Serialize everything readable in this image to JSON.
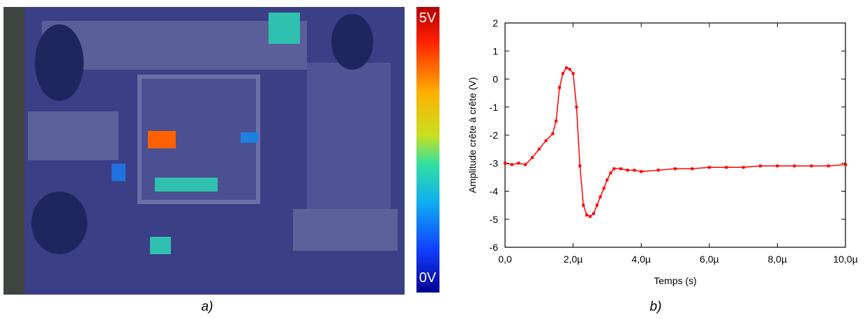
{
  "panel_a": {
    "colorbar_max": "5V",
    "colorbar_min": "0V",
    "caption": "a)"
  },
  "chart_data": {
    "type": "line",
    "caption": "b)",
    "x_label": "Temps (s)",
    "y_label": "Amplitude crête à crête (V)",
    "xlim": [
      0,
      1e-05
    ],
    "ylim": [
      -6,
      2
    ],
    "xticks": [
      {
        "value": 0,
        "label": "0,0"
      },
      {
        "value": 2e-06,
        "label": "2,0µ"
      },
      {
        "value": 4e-06,
        "label": "4,0µ"
      },
      {
        "value": 6e-06,
        "label": "6,0µ"
      },
      {
        "value": 8e-06,
        "label": "8,0µ"
      },
      {
        "value": 1e-05,
        "label": "10,0µ"
      }
    ],
    "yticks": [
      -6,
      -5,
      -4,
      -3,
      -2,
      -1,
      0,
      1,
      2
    ],
    "series": [
      {
        "color": "#ff0000",
        "x": [
          0,
          2e-07,
          4e-07,
          6e-07,
          8e-07,
          1e-06,
          1.2e-06,
          1.4e-06,
          1.5e-06,
          1.6e-06,
          1.7e-06,
          1.8e-06,
          1.9e-06,
          2e-06,
          2.1e-06,
          2.2e-06,
          2.3e-06,
          2.4e-06,
          2.5e-06,
          2.6e-06,
          2.7e-06,
          2.8e-06,
          2.9e-06,
          3e-06,
          3.1e-06,
          3.2e-06,
          3.4e-06,
          3.6e-06,
          3.8e-06,
          4e-06,
          4.5e-06,
          5e-06,
          5.5e-06,
          6e-06,
          6.5e-06,
          7e-06,
          7.5e-06,
          8e-06,
          8.5e-06,
          9e-06,
          9.5e-06,
          1e-05
        ],
        "values": [
          -3.0,
          -3.05,
          -3.0,
          -3.05,
          -2.8,
          -2.5,
          -2.2,
          -1.95,
          -1.5,
          -0.3,
          0.2,
          0.4,
          0.35,
          0.2,
          -1.0,
          -3.1,
          -4.5,
          -4.85,
          -4.9,
          -4.8,
          -4.5,
          -4.2,
          -3.9,
          -3.6,
          -3.35,
          -3.2,
          -3.2,
          -3.25,
          -3.25,
          -3.3,
          -3.25,
          -3.2,
          -3.2,
          -3.15,
          -3.15,
          -3.15,
          -3.1,
          -3.1,
          -3.1,
          -3.1,
          -3.1,
          -3.05
        ]
      }
    ]
  }
}
